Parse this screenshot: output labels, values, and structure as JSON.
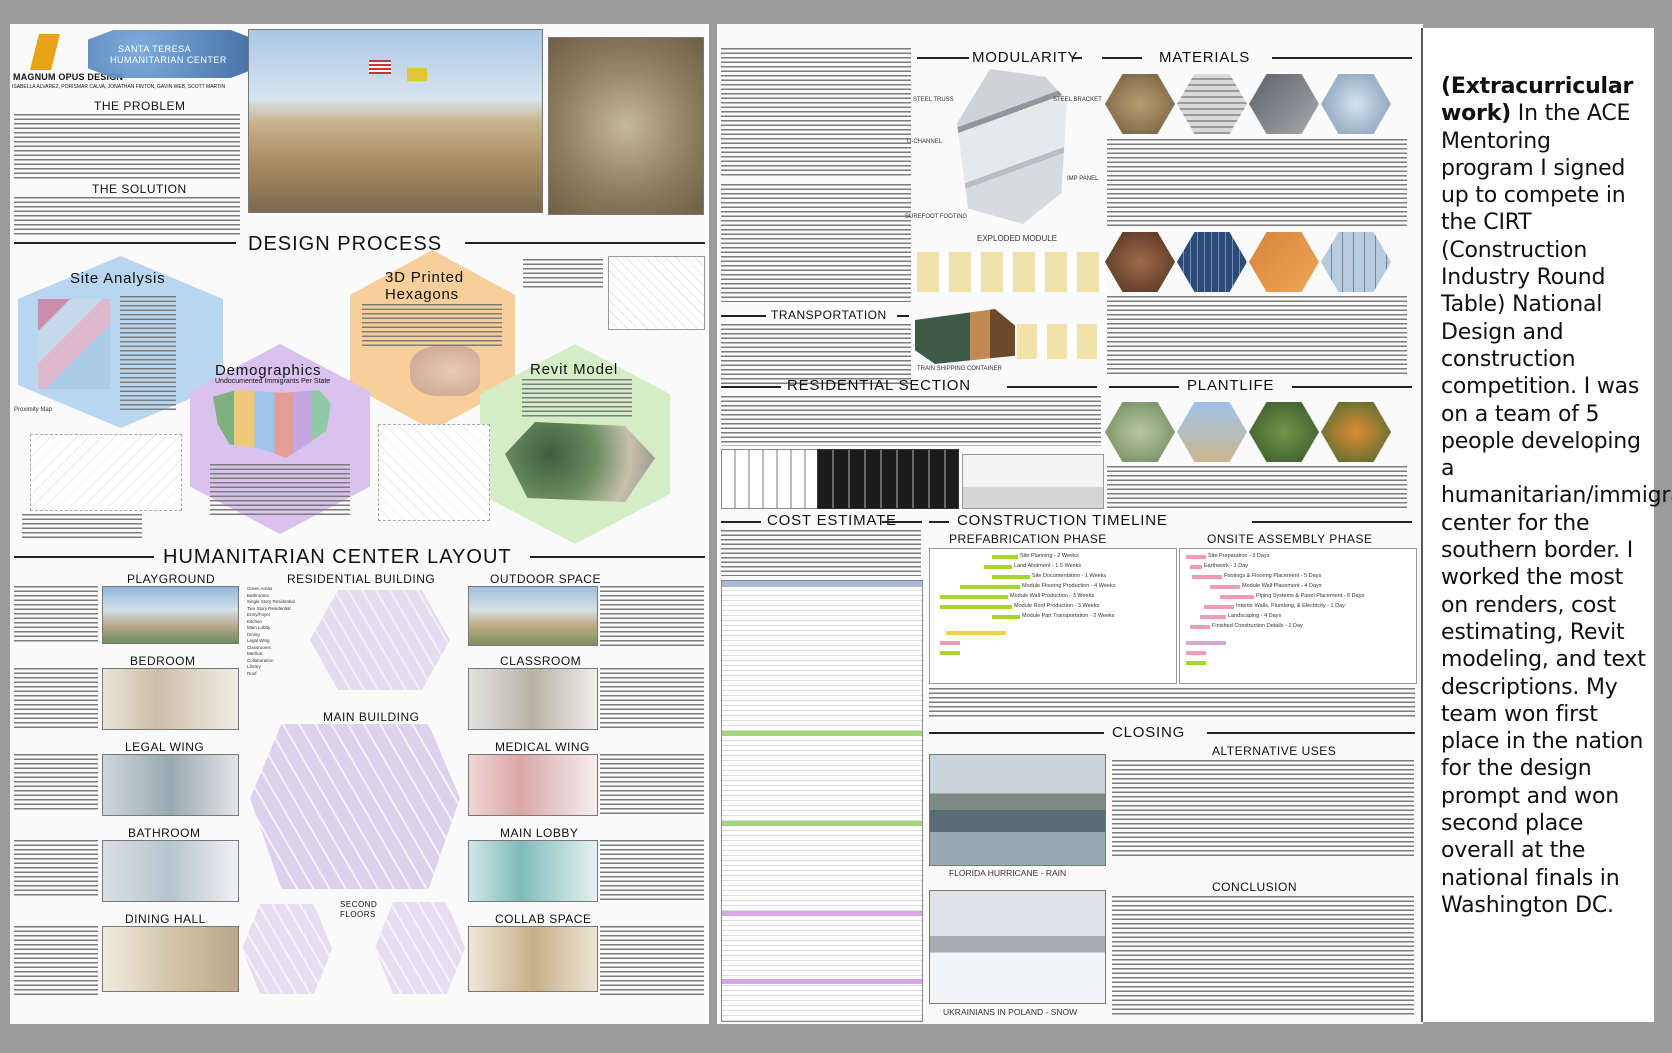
{
  "side_panel": {
    "prefix": "(Extracurricular work)",
    "body": " In the ACE Mentoring program I signed up to compete in the CIRT (Construction Industry Round Table) National Design and construction competition. I was on a team of 5 people developing a humanitarian/immigration center for the southern border. I worked the most on renders, cost estimating, Revit modeling, and text descriptions. My team won first place in the nation for the design prompt and won second place overall at the national finals in Washington DC."
  },
  "left_board": {
    "logo_text": "MAGNUM OPUS DESIGN",
    "project_title_line1": "SANTA TERESA",
    "project_title_line2": "HUMANITARIAN CENTER",
    "team": "ISABELLA ALVAREZ, PORISMAR CALVA, JONATHAN FINTON, GAVIN WEB, SCOTT MARTIN",
    "problem_heading": "THE PROBLEM",
    "solution_heading": "THE SOLUTION",
    "design_process_heading": "DESIGN PROCESS",
    "site_analysis": "Site Analysis",
    "printed_hexagons_line1": "3D Printed",
    "printed_hexagons_line2": "Hexagons",
    "demographics": "Demographics",
    "demographics_sub": "Undocumented Immigrants Per State",
    "revit_model": "Revit Model",
    "layout_heading": "HUMANITARIAN CENTER LAYOUT",
    "rooms_left": [
      "PLAYGROUND",
      "BEDROOM",
      "LEGAL WING",
      "BATHROOM",
      "DINING HALL"
    ],
    "residential_building": "RESIDENTIAL BUILDING",
    "main_building": "MAIN BUILDING",
    "second_floors_line1": "SECOND",
    "second_floors_line2": "FLOORS",
    "rooms_right": [
      "OUTDOOR SPACE",
      "CLASSROOM",
      "MEDICAL WING",
      "MAIN LOBBY",
      "COLLAB SPACE"
    ],
    "legend": [
      "Green Areas",
      "Bathrooms",
      "Single Story Residential",
      "Two Story Residential",
      "Entry/Foyer",
      "Kitchen",
      "Main Lobby",
      "Dining",
      "Legal Wing",
      "Classrooms",
      "Medical",
      "Collaboration",
      "Library",
      "Roof"
    ]
  },
  "right_board": {
    "modularity_heading": "MODULARITY",
    "materials_heading": "MATERIALS",
    "module_labels": [
      "STEEL TRUSS",
      "STEEL BRACKET",
      "U-CHANNEL",
      "IMP PANEL",
      "SUREFOOT FOOTING",
      "EXPLODED MODULE"
    ],
    "transportation_heading": "TRANSPORTATION",
    "train_label": "TRAIN SHIPPING CONTAINER",
    "residential_section_heading": "RESIDENTIAL SECTION",
    "plantlife_heading": "PLANTLIFE",
    "cost_estimate_heading": "COST ESTIMATE",
    "timeline_heading": "CONSTRUCTION TIMELINE",
    "prefab_heading": "PREFABRICATION PHASE",
    "onsite_heading": "ONSITE ASSEMBLY PHASE",
    "prefab_tasks": [
      "Site Planning - 2 Weeks",
      "Land Allotment - 1.5 Weeks",
      "Site Documentation - 1 Weeks",
      "Module Flooring Production - 4 Weeks",
      "Module Wall Production - 3 Weeks",
      "Module Roof Production - 3 Weeks",
      "Module Part Transportation - 2 Weeks"
    ],
    "onsite_tasks": [
      "Site Preparation - 3 Days",
      "Earthwork - 1 Day",
      "Footings & Flooring Placement - 5 Days",
      "Module Wall Placement - 4 Days",
      "Piping Systems & Panel Placement - 6 Days",
      "Interior Walls, Plumbing, & Electricity - 1 Day",
      "Landscaping - 4 Days",
      "Finished Construction Details - 1 Day"
    ],
    "closing_heading": "CLOSING",
    "alternative_uses_heading": "ALTERNATIVE USES",
    "florida_caption": "FLORIDA HURRICANE - RAIN",
    "conclusion_heading": "CONCLUSION",
    "ukraine_caption": "UKRAINIANS IN POLAND - SNOW"
  },
  "colors": {
    "background": "#9b9b9b",
    "site_hex": "#b9d6f0",
    "printed_hex": "#f7cf9a",
    "demographics_hex": "#d9c2ee",
    "revit_hex": "#d4edc7",
    "gantt_green": "#a4d62b",
    "gantt_pink": "#f09bb3"
  }
}
